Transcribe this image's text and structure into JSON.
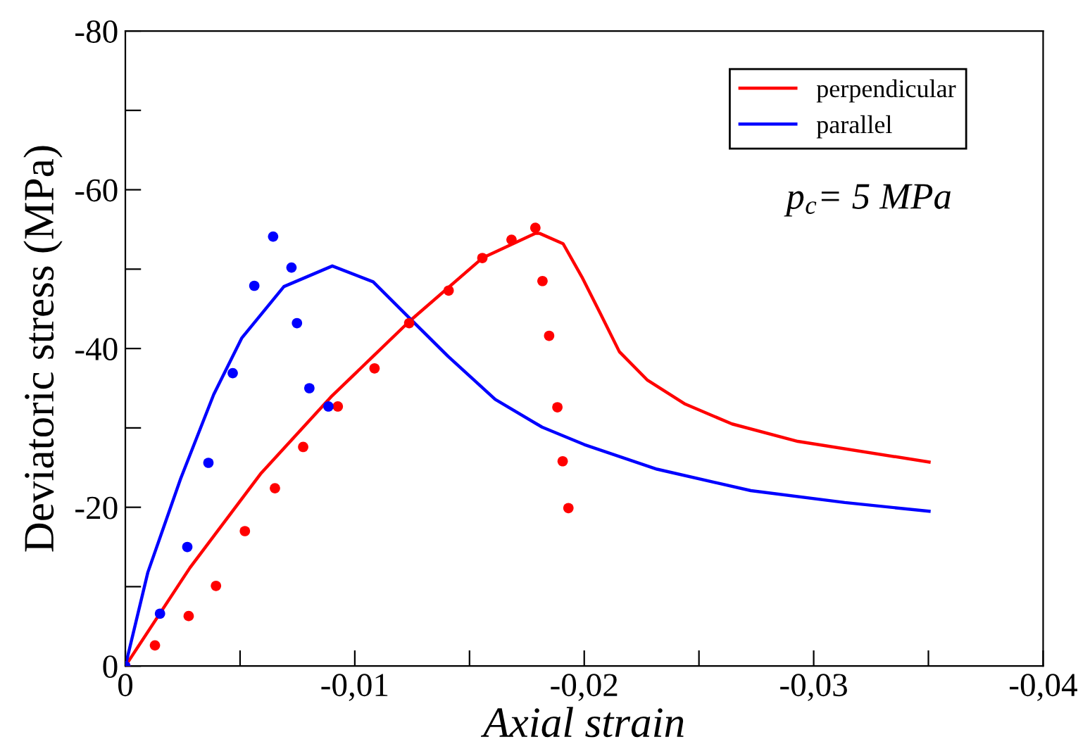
{
  "chart_data": {
    "type": "line",
    "xlabel": "Axial strain",
    "ylabel": "Deviatoric stress (MPa)",
    "xlim": [
      0,
      -0.04
    ],
    "ylim": [
      0,
      -80
    ],
    "xticks": [
      0,
      {
        "value": -0.005,
        "label": null
      },
      {
        "value": -0.01,
        "label": "-0,01"
      },
      {
        "value": -0.015,
        "label": null
      },
      {
        "value": -0.02,
        "label": "-0,02"
      },
      {
        "value": -0.025,
        "label": null
      },
      {
        "value": -0.03,
        "label": "-0,03"
      },
      {
        "value": -0.035,
        "label": null
      },
      {
        "value": -0.04,
        "label": "-0,04"
      }
    ],
    "yticks": [
      0,
      {
        "value": -10,
        "label": null
      },
      -20,
      {
        "value": -30,
        "label": null
      },
      -40,
      {
        "value": -50,
        "label": null
      },
      -60,
      {
        "value": -70,
        "label": null
      },
      -80
    ],
    "grid": false,
    "legend": "top right",
    "marker": "none",
    "line_style": "solid",
    "annotations": [
      "p$_{c}$= 5 MPa"
    ],
    "series": [
      {
        "name": "perpendicular",
        "color": "#ff0000",
        "x": [
          0,
          -0.00282,
          -0.00589,
          -0.00896,
          -0.01237,
          -0.01556,
          -0.01787,
          -0.01806,
          -0.01908,
          -0.0199,
          -0.02072,
          -0.02153,
          -0.02276,
          -0.0244,
          -0.02644,
          -0.02931,
          -0.03503
        ],
        "values": [
          0,
          -12.4,
          -24.2,
          -33.9,
          -43.4,
          -51.4,
          -54.5,
          -54.5,
          -53.2,
          -49.0,
          -44.3,
          -39.6,
          -36.0,
          -33.0,
          -30.5,
          -28.3,
          -25.7
        ]
      },
      {
        "name": "parallel",
        "color": "#0000ff",
        "x": [
          0,
          -0.00098,
          -0.00241,
          -0.00385,
          -0.00507,
          -0.00691,
          -0.00902,
          -0.0108,
          -0.01243,
          -0.01407,
          -0.01612,
          -0.01816,
          -0.02,
          -0.02317,
          -0.02726,
          -0.03135,
          -0.03503
        ],
        "values": [
          0,
          -11.8,
          -23.6,
          -34.2,
          -41.3,
          -47.8,
          -50.4,
          -48.4,
          -43.7,
          -39.0,
          -33.6,
          -30.1,
          -27.9,
          -24.8,
          -22.1,
          -20.6,
          -19.5
        ]
      },
      {
        "type": "scatter",
        "marker": "circle",
        "color": "#ff0000",
        "x": [
          0,
          -0.00129,
          -0.00276,
          -0.00395,
          -0.00521,
          -0.00652,
          -0.00775,
          -0.00926,
          -0.01086,
          -0.01237,
          -0.01409,
          -0.01556,
          -0.01683,
          -0.01787,
          -0.01818,
          -0.01847,
          -0.01883,
          -0.01906,
          -0.01931
        ],
        "values": [
          0,
          -2.6,
          -6.3,
          -10.1,
          -17.0,
          -22.4,
          -27.6,
          -32.7,
          -37.5,
          -43.2,
          -47.3,
          -51.4,
          -53.7,
          -55.2,
          -48.5,
          -41.6,
          -32.6,
          -25.8,
          -19.9
        ]
      },
      {
        "type": "scatter",
        "marker": "circle",
        "color": "#0000ff",
        "x": [
          0,
          -0.00151,
          -0.0027,
          -0.00362,
          -0.00468,
          -0.00562,
          -0.00644,
          -0.00724,
          -0.00748,
          -0.00802,
          -0.00885
        ],
        "values": [
          0,
          -6.6,
          -15.0,
          -25.6,
          -36.9,
          -47.9,
          -54.1,
          -50.2,
          -43.2,
          -35.0,
          -32.7
        ]
      }
    ]
  }
}
